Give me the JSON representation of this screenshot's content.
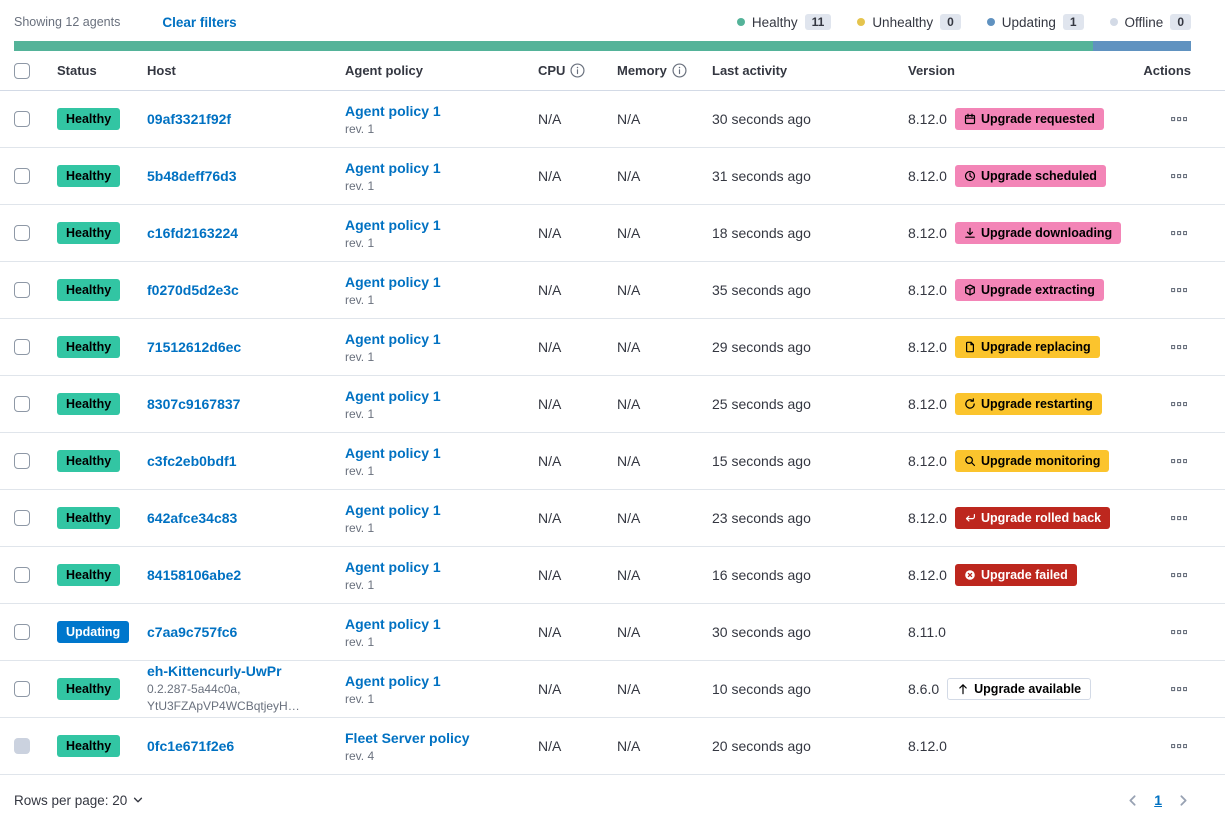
{
  "toolbar": {
    "showing": "Showing 12 agents",
    "clear_filters": "Clear filters"
  },
  "legend": [
    {
      "label": "Healthy",
      "count": "11",
      "color": "#54B399"
    },
    {
      "label": "Unhealthy",
      "count": "0",
      "color": "#E5C44D"
    },
    {
      "label": "Updating",
      "count": "1",
      "color": "#6092C0"
    },
    {
      "label": "Offline",
      "count": "0",
      "color": "#D3DAE6"
    }
  ],
  "status_bar": {
    "segments": [
      {
        "color": "#54B399",
        "fraction": 0.9167
      },
      {
        "color": "#6092C0",
        "fraction": 0.0833
      }
    ]
  },
  "table": {
    "columns": [
      {
        "label": "Status"
      },
      {
        "label": "Host"
      },
      {
        "label": "Agent policy"
      },
      {
        "label": "CPU",
        "info": true
      },
      {
        "label": "Memory",
        "info": true
      },
      {
        "label": "Last activity"
      },
      {
        "label": "Version"
      },
      {
        "label": "Actions"
      }
    ],
    "rows": [
      {
        "status": {
          "label": "Healthy",
          "variant": "success"
        },
        "host": {
          "name": "09af3321f92f",
          "meta": []
        },
        "policy": {
          "name": "Agent policy 1",
          "rev": "rev. 1",
          "locked": false
        },
        "cpu": "N/A",
        "memory": "N/A",
        "last_activity": "30 seconds ago",
        "version": "8.12.0",
        "upgrade": {
          "label": "Upgrade requested",
          "variant": "accent",
          "icon": "calendar-icon"
        },
        "version_info": true,
        "checkbox_disabled": false
      },
      {
        "status": {
          "label": "Healthy",
          "variant": "success"
        },
        "host": {
          "name": "5b48deff76d3",
          "meta": []
        },
        "policy": {
          "name": "Agent policy 1",
          "rev": "rev. 1",
          "locked": false
        },
        "cpu": "N/A",
        "memory": "N/A",
        "last_activity": "31 seconds ago",
        "version": "8.12.0",
        "upgrade": {
          "label": "Upgrade scheduled",
          "variant": "accent",
          "icon": "clock-icon"
        },
        "version_info": true,
        "checkbox_disabled": false
      },
      {
        "status": {
          "label": "Healthy",
          "variant": "success"
        },
        "host": {
          "name": "c16fd2163224",
          "meta": []
        },
        "policy": {
          "name": "Agent policy 1",
          "rev": "rev. 1",
          "locked": false
        },
        "cpu": "N/A",
        "memory": "N/A",
        "last_activity": "18 seconds ago",
        "version": "8.12.0",
        "upgrade": {
          "label": "Upgrade downloading",
          "variant": "accent",
          "icon": "download-icon"
        },
        "version_info": true,
        "checkbox_disabled": false
      },
      {
        "status": {
          "label": "Healthy",
          "variant": "success"
        },
        "host": {
          "name": "f0270d5d2e3c",
          "meta": []
        },
        "policy": {
          "name": "Agent policy 1",
          "rev": "rev. 1",
          "locked": false
        },
        "cpu": "N/A",
        "memory": "N/A",
        "last_activity": "35 seconds ago",
        "version": "8.12.0",
        "upgrade": {
          "label": "Upgrade extracting",
          "variant": "accent",
          "icon": "package-icon"
        },
        "version_info": true,
        "checkbox_disabled": false
      },
      {
        "status": {
          "label": "Healthy",
          "variant": "success"
        },
        "host": {
          "name": "71512612d6ec",
          "meta": []
        },
        "policy": {
          "name": "Agent policy 1",
          "rev": "rev. 1",
          "locked": false
        },
        "cpu": "N/A",
        "memory": "N/A",
        "last_activity": "29 seconds ago",
        "version": "8.12.0",
        "upgrade": {
          "label": "Upgrade replacing",
          "variant": "warning",
          "icon": "document-icon"
        },
        "version_info": true,
        "checkbox_disabled": false
      },
      {
        "status": {
          "label": "Healthy",
          "variant": "success"
        },
        "host": {
          "name": "8307c9167837",
          "meta": []
        },
        "policy": {
          "name": "Agent policy 1",
          "rev": "rev. 1",
          "locked": false
        },
        "cpu": "N/A",
        "memory": "N/A",
        "last_activity": "25 seconds ago",
        "version": "8.12.0",
        "upgrade": {
          "label": "Upgrade restarting",
          "variant": "warning",
          "icon": "refresh-icon"
        },
        "version_info": true,
        "checkbox_disabled": false
      },
      {
        "status": {
          "label": "Healthy",
          "variant": "success"
        },
        "host": {
          "name": "c3fc2eb0bdf1",
          "meta": []
        },
        "policy": {
          "name": "Agent policy 1",
          "rev": "rev. 1",
          "locked": false
        },
        "cpu": "N/A",
        "memory": "N/A",
        "last_activity": "15 seconds ago",
        "version": "8.12.0",
        "upgrade": {
          "label": "Upgrade monitoring",
          "variant": "warning",
          "icon": "inspect-icon"
        },
        "version_info": true,
        "checkbox_disabled": false
      },
      {
        "status": {
          "label": "Healthy",
          "variant": "success"
        },
        "host": {
          "name": "642afce34c83",
          "meta": []
        },
        "policy": {
          "name": "Agent policy 1",
          "rev": "rev. 1",
          "locked": false
        },
        "cpu": "N/A",
        "memory": "N/A",
        "last_activity": "23 seconds ago",
        "version": "8.12.0",
        "upgrade": {
          "label": "Upgrade rolled back",
          "variant": "danger",
          "icon": "return-icon"
        },
        "version_info": true,
        "checkbox_disabled": false
      },
      {
        "status": {
          "label": "Healthy",
          "variant": "success"
        },
        "host": {
          "name": "84158106abe2",
          "meta": []
        },
        "policy": {
          "name": "Agent policy 1",
          "rev": "rev. 1",
          "locked": false
        },
        "cpu": "N/A",
        "memory": "N/A",
        "last_activity": "16 seconds ago",
        "version": "8.12.0",
        "upgrade": {
          "label": "Upgrade failed",
          "variant": "danger",
          "icon": "error-icon"
        },
        "version_info": true,
        "checkbox_disabled": false
      },
      {
        "status": {
          "label": "Updating",
          "variant": "primary"
        },
        "host": {
          "name": "c7aa9c757fc6",
          "meta": []
        },
        "policy": {
          "name": "Agent policy 1",
          "rev": "rev. 1",
          "locked": false
        },
        "cpu": "N/A",
        "memory": "N/A",
        "last_activity": "30 seconds ago",
        "version": "8.11.0",
        "upgrade": null,
        "version_info": true,
        "checkbox_disabled": false
      },
      {
        "status": {
          "label": "Healthy",
          "variant": "success"
        },
        "host": {
          "name": "eh-Kittencurly-UwPr",
          "meta": [
            "0.2.287-5a44c0a,",
            "YtU3FZApVP4WCBqtjeyH…"
          ]
        },
        "policy": {
          "name": "Agent policy 1",
          "rev": "rev. 1",
          "locked": false
        },
        "cpu": "N/A",
        "memory": "N/A",
        "last_activity": "10 seconds ago",
        "version": "8.6.0",
        "upgrade": {
          "label": "Upgrade available",
          "variant": "hollow",
          "icon": "arrow-up-icon"
        },
        "version_info": false,
        "checkbox_disabled": false
      },
      {
        "status": {
          "label": "Healthy",
          "variant": "success"
        },
        "host": {
          "name": "0fc1e671f2e6",
          "meta": []
        },
        "policy": {
          "name": "Fleet Server policy",
          "rev": "rev. 4",
          "locked": true
        },
        "cpu": "N/A",
        "memory": "N/A",
        "last_activity": "20 seconds ago",
        "version": "8.12.0",
        "upgrade": null,
        "version_info": false,
        "checkbox_disabled": true
      }
    ]
  },
  "footer": {
    "rows_per_page": "Rows per page: 20",
    "page": "1"
  }
}
